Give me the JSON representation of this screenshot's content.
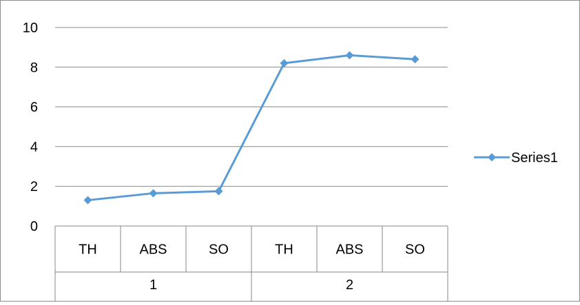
{
  "chart_data": {
    "type": "line",
    "categories_level1": [
      "TH",
      "ABS",
      "SO",
      "TH",
      "ABS",
      "SO"
    ],
    "categories_level2": [
      {
        "label": "1",
        "span": [
          0,
          2
        ]
      },
      {
        "label": "2",
        "span": [
          3,
          5
        ]
      }
    ],
    "series": [
      {
        "name": "Series1",
        "values": [
          1.3,
          1.65,
          1.75,
          8.2,
          8.6,
          8.4
        ],
        "color": "#5B9BD5",
        "marker": "diamond"
      }
    ],
    "yticks": [
      "0",
      "2",
      "4",
      "6",
      "8",
      "10"
    ],
    "ylim": [
      0,
      10
    ],
    "grid": true,
    "legend": "right",
    "title": "",
    "xlabel": "",
    "ylabel": ""
  }
}
